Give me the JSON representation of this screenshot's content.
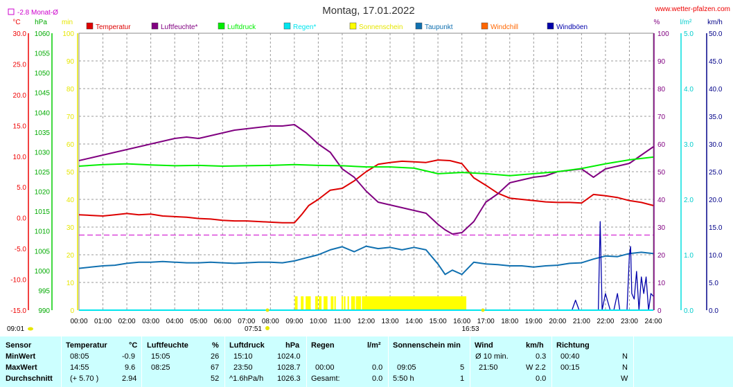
{
  "header": {
    "title": "Montag, 17.01.2022",
    "site": "www.wetter-pfalzen.com",
    "month_label": "-2.8 Monat-Ø"
  },
  "axis_units": {
    "temp": "°C",
    "pressure": "hPa",
    "sun": "min",
    "humidity": "%",
    "rain": "l/m²",
    "wind": "km/h"
  },
  "legend": [
    {
      "label": "Temperatur",
      "color": "#dd0000"
    },
    {
      "label": "Luftfeuchte*",
      "color": "#800080"
    },
    {
      "label": "Luftdruck",
      "color": "#00ee00"
    },
    {
      "label": "Regen*",
      "color": "#00e5ee"
    },
    {
      "label": "Sonnenschein",
      "color": "#ffff00"
    },
    {
      "label": "Taupunkt",
      "color": "#1070b0"
    },
    {
      "label": "Windchill",
      "color": "#ff6600"
    },
    {
      "label": "Windböen",
      "color": "#0000aa"
    }
  ],
  "annotations": {
    "sunrise": "07:51",
    "sunset": "16:53",
    "update": "09:01"
  },
  "stats": {
    "headers": {
      "sensor": "Sensor",
      "temperatur": "Temperatur",
      "temp_unit": "°C",
      "luftfeuchte": "Luftfeuchte",
      "hum_unit": "%",
      "luftdruck": "Luftdruck",
      "press_unit": "hPa",
      "regen": "Regen",
      "rain_unit": "l/m²",
      "sonne": "Sonnenschein min",
      "wind": "Wind",
      "wind_unit": "km/h",
      "richtung": "Richtung"
    },
    "rows": [
      {
        "label": "MinWert",
        "temp_time": "08:05",
        "temp_val": "-0.9",
        "hum_time": "15:05",
        "hum_val": "26",
        "press_time": "15:10",
        "press_val": "1024.0",
        "rain_time": "",
        "rain_val": "",
        "sun_time": "",
        "sun_val": "",
        "wind_label": "Ø 10 min.",
        "wind_val": "0.3",
        "dir_time": "00:40",
        "dir_val": "N"
      },
      {
        "label": "MaxWert",
        "temp_time": "14:55",
        "temp_val": "9.6",
        "hum_time": "08:25",
        "hum_val": "67",
        "press_time": "23:50",
        "press_val": "1028.7",
        "rain_time": "00:00",
        "rain_val": "0.0",
        "sun_time": "09:05",
        "sun_val": "5",
        "wind_label": "21:50",
        "wind_val": "W 2.2",
        "dir_time": "00:15",
        "dir_val": "N"
      },
      {
        "label": "Durchschnitt",
        "temp_time": "(+ 5.70 )",
        "temp_val": "2.94",
        "hum_time": "",
        "hum_val": "52",
        "press_time": "^1.6hPa/h",
        "press_val": "1026.3",
        "rain_time": "Gesamt:",
        "rain_val": "0.0",
        "sun_time": "5:50 h",
        "sun_val": "1",
        "wind_label": "",
        "wind_val": "0.0",
        "dir_time": "",
        "dir_val": "W"
      }
    ]
  },
  "chart_data": {
    "type": "line",
    "x_axis": {
      "label": "",
      "ticks": [
        "00:00",
        "01:00",
        "02:00",
        "03:00",
        "04:00",
        "05:00",
        "06:00",
        "07:00",
        "08:00",
        "09:00",
        "10:00",
        "11:00",
        "12:00",
        "13:00",
        "14:00",
        "15:00",
        "16:00",
        "17:00",
        "18:00",
        "19:00",
        "20:00",
        "21:00",
        "22:00",
        "23:00",
        "24:00"
      ]
    },
    "y_axes": {
      "temp": {
        "unit": "°C",
        "ylim": [
          -15,
          30
        ],
        "ticks": [
          "30.0",
          "25.0",
          "20.0",
          "15.0",
          "10.0",
          "5.0",
          "0.0",
          "-5.0",
          "-10.0",
          "-15.0"
        ]
      },
      "pressure": {
        "unit": "hPa",
        "ylim": [
          990,
          1060
        ],
        "ticks": [
          "1060",
          "1055",
          "1050",
          "1045",
          "1040",
          "1035",
          "1030",
          "1025",
          "1020",
          "1015",
          "1010",
          "1005",
          "1000",
          "995",
          "990"
        ]
      },
      "sun": {
        "unit": "min",
        "ylim": [
          0,
          100
        ],
        "ticks": [
          "100",
          "90",
          "80",
          "70",
          "60",
          "50",
          "40",
          "30",
          "20",
          "10",
          "0"
        ]
      },
      "humidity": {
        "unit": "%",
        "ylim": [
          0,
          100
        ],
        "ticks": [
          "100",
          "90",
          "80",
          "70",
          "60",
          "50",
          "40",
          "30",
          "20",
          "10",
          "0"
        ]
      },
      "rain": {
        "unit": "l/m²",
        "ylim": [
          0,
          5
        ],
        "ticks": [
          "5.0",
          "4.0",
          "3.0",
          "2.0",
          "1.0",
          "0.0"
        ]
      },
      "wind": {
        "unit": "km/h",
        "ylim": [
          0,
          50
        ],
        "ticks": [
          "50.0",
          "45.0",
          "40.0",
          "35.0",
          "30.0",
          "25.0",
          "20.0",
          "15.0",
          "10.0",
          "5.0",
          "0.0"
        ]
      }
    },
    "month_avg_temp": -2.8,
    "series": [
      {
        "name": "Temperatur",
        "axis": "temp",
        "color": "#dd0000",
        "x": [
          0,
          0.5,
          1,
          1.5,
          2,
          2.5,
          3,
          3.5,
          4,
          4.5,
          5,
          5.5,
          6,
          6.5,
          7,
          7.5,
          8,
          8.5,
          9,
          9.3,
          9.6,
          10,
          10.5,
          11,
          11.5,
          12,
          12.5,
          13,
          13.5,
          14,
          14.5,
          15,
          15.5,
          16,
          16.5,
          17,
          17.5,
          18,
          18.5,
          19,
          19.5,
          20,
          20.5,
          21,
          21.5,
          22,
          22.5,
          23,
          23.5,
          24
        ],
        "y": [
          0.5,
          0.4,
          0.3,
          0.5,
          0.7,
          0.5,
          0.6,
          0.3,
          0.2,
          0.1,
          -0.1,
          -0.2,
          -0.4,
          -0.5,
          -0.5,
          -0.6,
          -0.7,
          -0.8,
          -0.8,
          0.5,
          2,
          3,
          4.5,
          4.8,
          6,
          7.5,
          8.7,
          9,
          9.2,
          9.1,
          9,
          9.4,
          9.3,
          8.8,
          6.5,
          5.3,
          4,
          3.2,
          3,
          2.8,
          2.6,
          2.5,
          2.5,
          2.4,
          3.8,
          3.6,
          3.3,
          2.8,
          2.5,
          2
        ]
      },
      {
        "name": "Luftfeuchte*",
        "axis": "humidity",
        "color": "#800080",
        "x": [
          0,
          0.5,
          1,
          1.5,
          2,
          2.5,
          3,
          3.5,
          4,
          4.5,
          5,
          5.5,
          6,
          6.5,
          7,
          7.5,
          8,
          8.5,
          9,
          9.5,
          10,
          10.5,
          11,
          11.5,
          12,
          12.5,
          13,
          13.5,
          14,
          14.5,
          15,
          15.3,
          15.6,
          16,
          16.5,
          17,
          17.5,
          18,
          18.5,
          19,
          19.5,
          20,
          20.5,
          21,
          21.5,
          22,
          22.5,
          23,
          23.5,
          24
        ],
        "y": [
          54,
          55,
          56,
          57,
          58,
          59,
          60,
          61,
          62,
          62.5,
          62,
          63,
          64,
          65,
          65.5,
          66,
          66.5,
          66.5,
          67,
          64,
          60,
          57,
          51,
          48,
          43,
          39,
          38,
          37,
          36,
          35,
          31,
          29,
          27.5,
          28,
          32,
          39,
          42,
          46,
          47,
          48,
          48.5,
          50,
          50.5,
          51,
          48,
          51,
          52,
          53,
          56,
          59
        ]
      },
      {
        "name": "Luftdruck",
        "axis": "pressure",
        "color": "#00ee00",
        "x": [
          0,
          1,
          2,
          3,
          4,
          5,
          6,
          7,
          8,
          9,
          10,
          11,
          12,
          13,
          14,
          15,
          16,
          17,
          18,
          19,
          20,
          21,
          22,
          23,
          24
        ],
        "y": [
          1026.4,
          1026.8,
          1027,
          1026.7,
          1026.5,
          1026.6,
          1026.4,
          1026.5,
          1026.6,
          1026.8,
          1026.6,
          1026.5,
          1026.2,
          1026.2,
          1025.9,
          1024.5,
          1024.8,
          1024.5,
          1024,
          1024.5,
          1025,
          1025.8,
          1027,
          1028,
          1028.7
        ]
      },
      {
        "name": "Taupunkt",
        "axis": "temp",
        "color": "#1070b0",
        "x": [
          0,
          0.5,
          1,
          1.5,
          2,
          2.5,
          3,
          3.5,
          4,
          4.5,
          5,
          5.5,
          6,
          6.5,
          7,
          7.5,
          8,
          8.5,
          9,
          9.5,
          10,
          10.5,
          11,
          11.5,
          12,
          12.5,
          13,
          13.5,
          14,
          14.5,
          15,
          15.3,
          15.6,
          16,
          16.5,
          17,
          17.5,
          18,
          18.5,
          19,
          19.5,
          20,
          20.5,
          21,
          21.5,
          22,
          22.5,
          23,
          23.5,
          24
        ],
        "y": [
          -8.2,
          -8,
          -7.8,
          -7.7,
          -7.4,
          -7.2,
          -7.2,
          -7.1,
          -7.2,
          -7.3,
          -7.3,
          -7.2,
          -7.3,
          -7.4,
          -7.3,
          -7.2,
          -7.2,
          -7.3,
          -7,
          -6.5,
          -6,
          -5.2,
          -4.7,
          -5.5,
          -4.6,
          -5,
          -4.8,
          -5.2,
          -4.8,
          -5.2,
          -7.5,
          -9.2,
          -8.5,
          -9.2,
          -7.2,
          -7.5,
          -7.6,
          -7.8,
          -7.8,
          -8,
          -7.8,
          -7.7,
          -7.4,
          -7.3,
          -6.7,
          -6.2,
          -6.3,
          -5.8,
          -5.6,
          -5.8
        ]
      },
      {
        "name": "Windböen",
        "axis": "wind",
        "color": "#0000aa",
        "x": [
          0,
          20.6,
          20.75,
          20.9,
          21,
          21.5,
          21.7,
          21.78,
          21.86,
          22,
          22.2,
          22.35,
          22.5,
          22.6,
          22.9,
          23,
          23.05,
          23.1,
          23.2,
          23.3,
          23.4,
          23.5,
          23.6,
          23.7,
          23.8,
          23.9,
          24
        ],
        "y": [
          0,
          0,
          1.8,
          0,
          0,
          0,
          0,
          16,
          0,
          3,
          0,
          0,
          3,
          0,
          0,
          10,
          11.5,
          3,
          2,
          7,
          0,
          6,
          3,
          6,
          0,
          3,
          2.5
        ]
      },
      {
        "name": "Regen*",
        "axis": "rain",
        "color": "#00e5ee",
        "x": [
          0,
          24
        ],
        "y": [
          0,
          0
        ]
      }
    ],
    "sunshine_minutes": {
      "axis": "sun",
      "color": "#ffff00",
      "hours": [
        9.05,
        9.1,
        9.3,
        9.35,
        9.5,
        9.55,
        9.6,
        9.65,
        9.9,
        9.95,
        10.05,
        10.1,
        10.25,
        10.3,
        10.35,
        10.55,
        10.6,
        10.7,
        11.0,
        11.1,
        11.25,
        11.4,
        11.45,
        11.5,
        11.6,
        11.65,
        11.7,
        11.75,
        11.85,
        11.9,
        11.95,
        12.0,
        12.05,
        12.1,
        12.15,
        12.2,
        12.25,
        12.3,
        12.35,
        12.4,
        12.45,
        12.5,
        12.55,
        12.6,
        12.65,
        12.7,
        12.75,
        12.8,
        12.85,
        12.9,
        12.95,
        13.0,
        13.05,
        13.1,
        13.15,
        13.2,
        13.25,
        13.3,
        13.35,
        13.4,
        13.45,
        13.5,
        13.55,
        13.6,
        13.65,
        13.7,
        13.75,
        13.8,
        13.85,
        13.9,
        13.95,
        14.0,
        14.05,
        14.1,
        14.15,
        14.2,
        14.25,
        14.3,
        14.35,
        14.4,
        14.45,
        14.5,
        14.55,
        14.6,
        14.65,
        14.7,
        14.75,
        14.8,
        14.85,
        14.9,
        14.95,
        15.0,
        15.05,
        15.1,
        15.15,
        15.2,
        15.25,
        15.3,
        15.35,
        15.4,
        15.45,
        15.5,
        15.55,
        15.6,
        15.65,
        15.7,
        15.75,
        15.8,
        15.85,
        15.9,
        15.95,
        16.0,
        16.05,
        16.1,
        16.15
      ],
      "value": 5
    }
  }
}
